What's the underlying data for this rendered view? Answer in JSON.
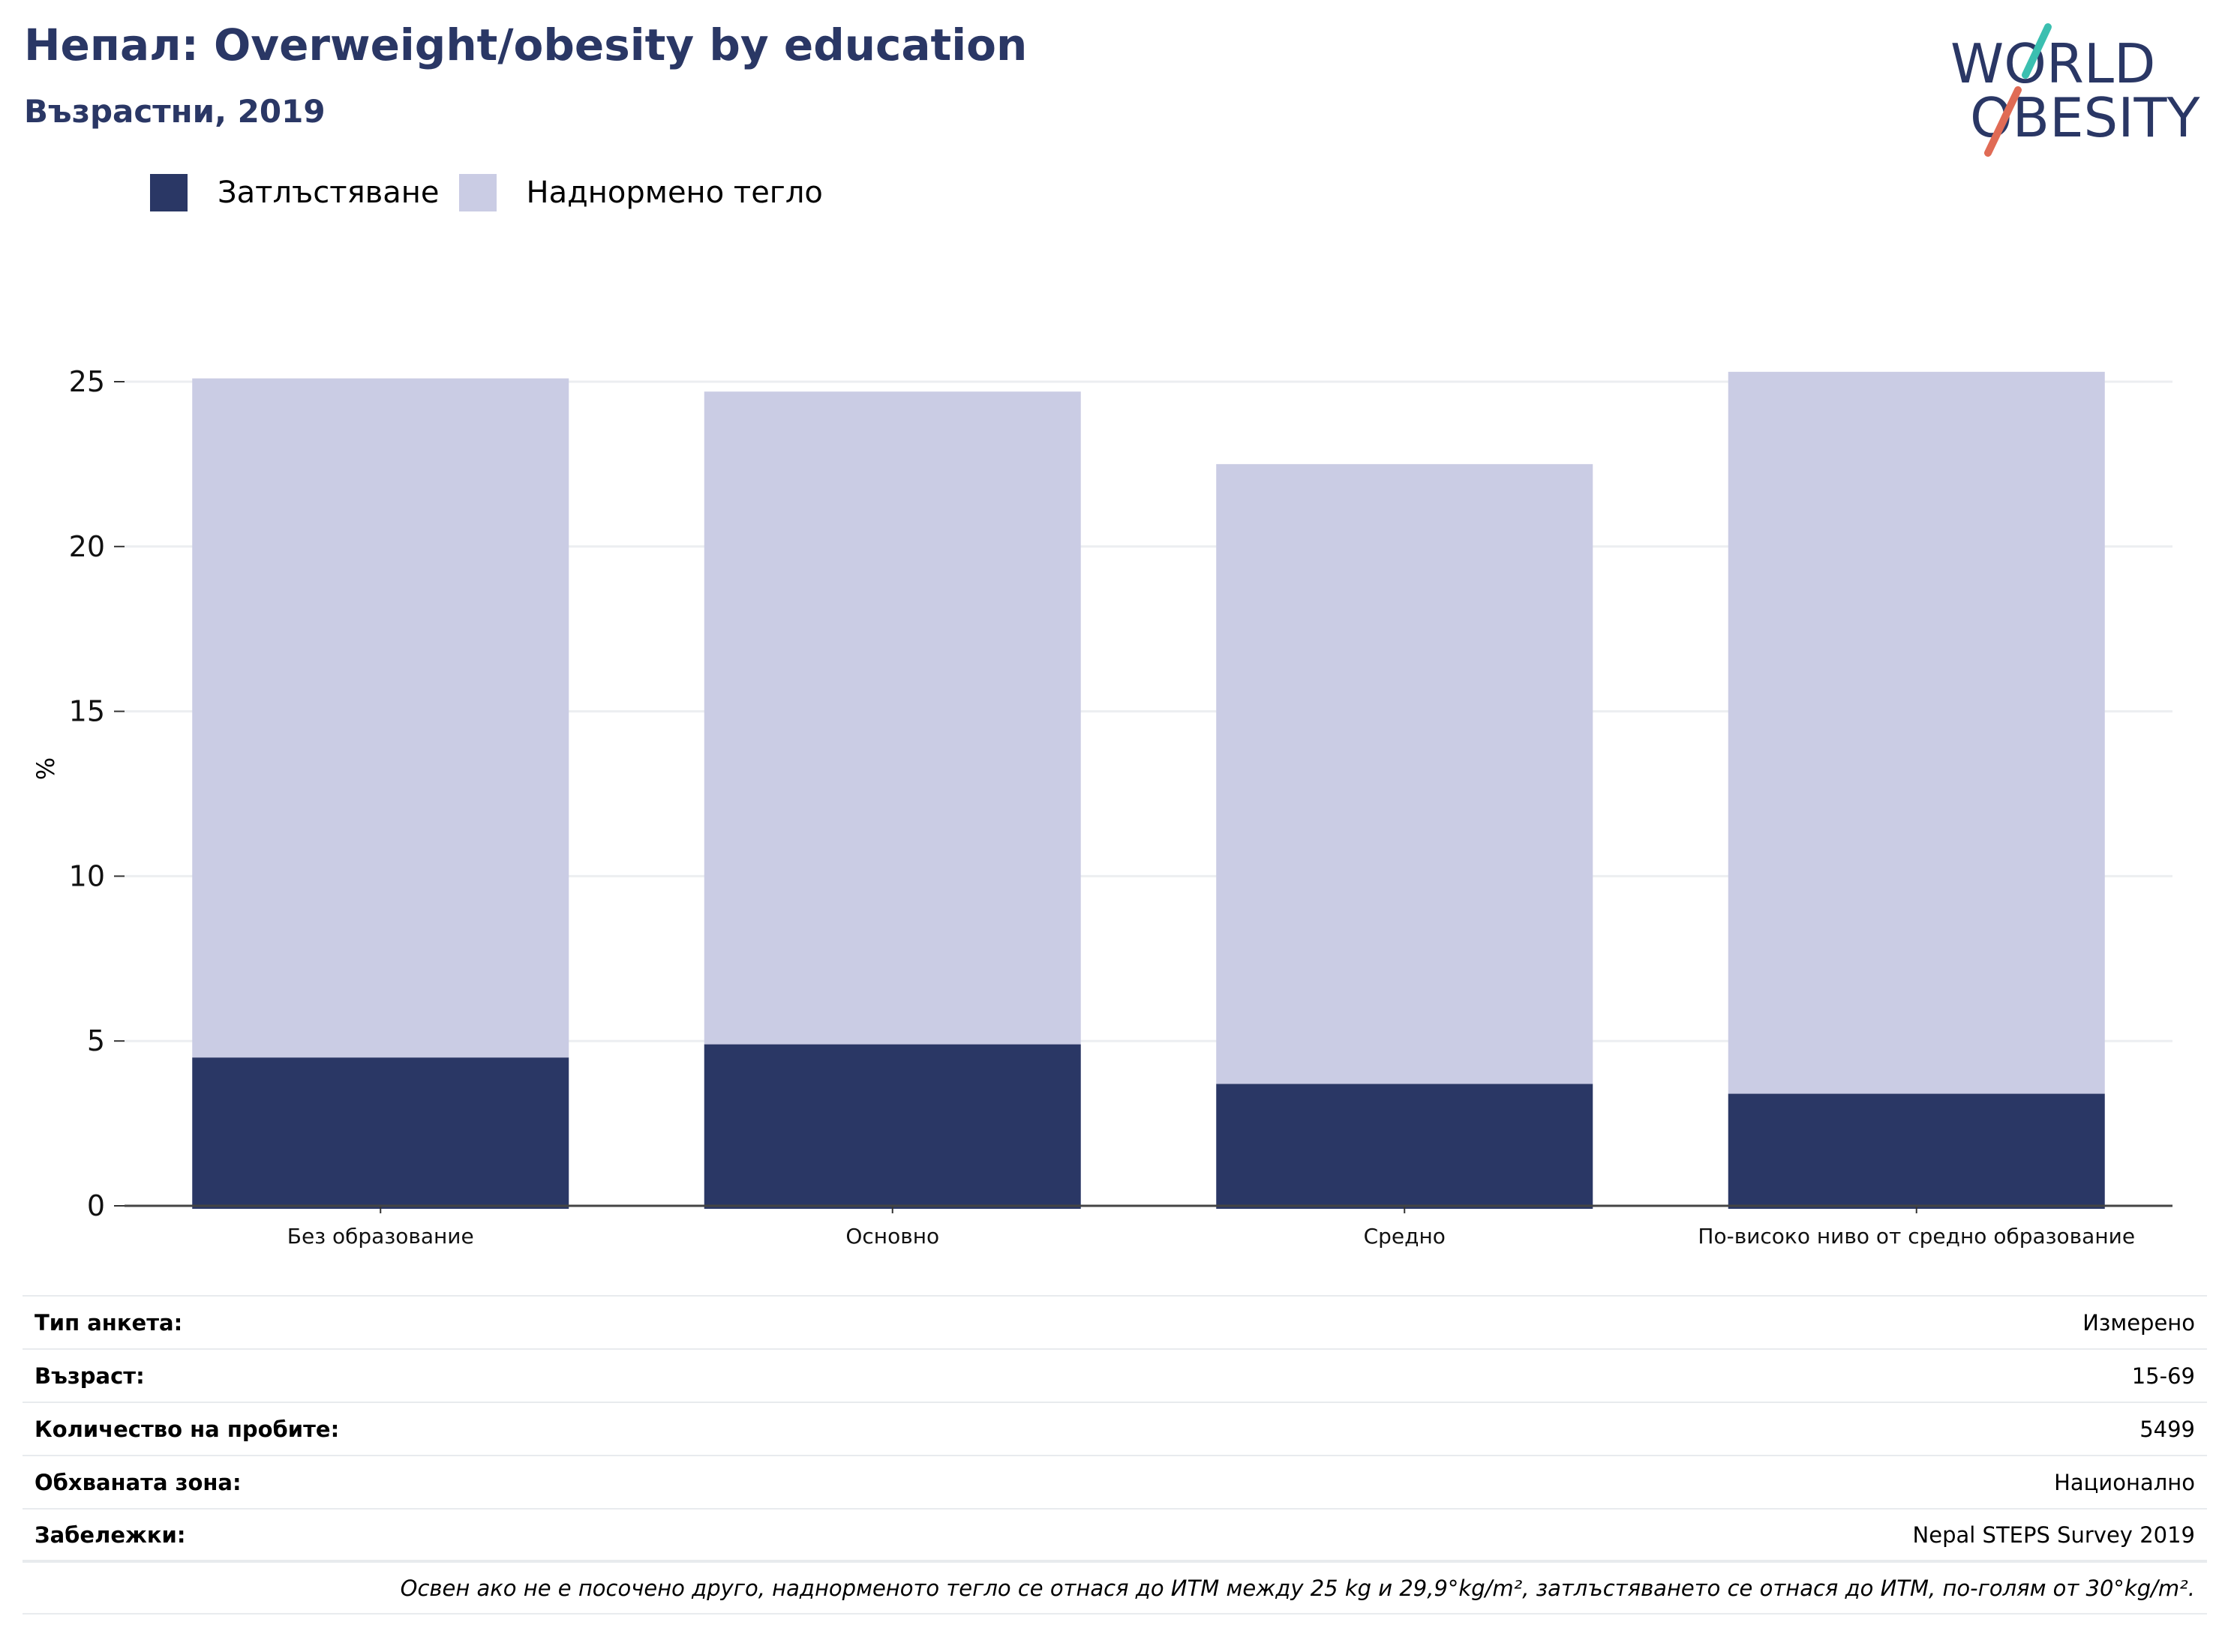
{
  "header": {
    "title": "Непал: Overweight/obesity by education",
    "subtitle": "Възрастни, 2019"
  },
  "logo": {
    "line1": "WORLD",
    "line2": "OBESITY"
  },
  "colors": {
    "obesity": "#2a3765",
    "overweight": "#cacce4",
    "accent_teal": "#3bbfb0",
    "accent_coral": "#e06b55"
  },
  "chart_data": {
    "type": "bar",
    "stacked": true,
    "categories": [
      "Без образование",
      "Основно",
      "Средно",
      "По-високо ниво от средно образование"
    ],
    "series": [
      {
        "name": "Затлъстяване",
        "values": [
          4.5,
          4.9,
          3.7,
          3.4
        ]
      },
      {
        "name": "Наднормено тегло",
        "values": [
          20.6,
          19.8,
          18.8,
          21.9
        ]
      }
    ],
    "ylabel": "%",
    "ylim": [
      0,
      25
    ],
    "yticks": [
      0,
      5,
      10,
      15,
      20,
      25
    ],
    "grid": true,
    "legend": "top-left"
  },
  "info": {
    "rows": [
      {
        "key": "Тип анкета:",
        "value": "Измерено"
      },
      {
        "key": "Възраст:",
        "value": "15-69"
      },
      {
        "key": "Количество на пробите:",
        "value": "5499"
      },
      {
        "key": "Обхваната зона:",
        "value": "Национално"
      },
      {
        "key": "Забележки:",
        "value": "Nepal STEPS Survey 2019"
      }
    ],
    "note": "Освен ако не е посочено друго, наднорменото тегло се отнася до ИТМ между 25 kg и 29,9°kg/m², затлъстяването се отнася до ИТМ, по-голям от 30°kg/m²."
  }
}
